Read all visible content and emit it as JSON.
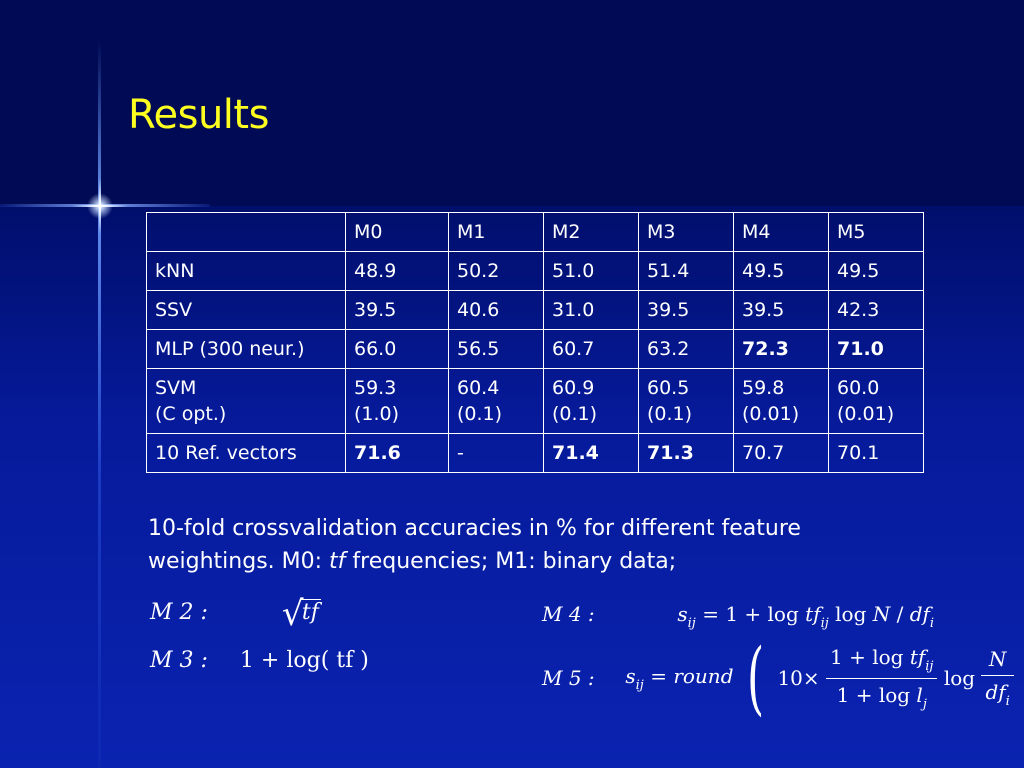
{
  "slide": {
    "title": "Results"
  },
  "table": {
    "headers": [
      "",
      "M0",
      "M1",
      "M2",
      "M3",
      "M4",
      "M5"
    ],
    "rows": [
      {
        "label": "kNN",
        "cells": [
          "48.9",
          "50.2",
          "51.0",
          "51.4",
          "49.5",
          "49.5"
        ]
      },
      {
        "label": "SSV",
        "cells": [
          "39.5",
          "40.6",
          "31.0",
          "39.5",
          "39.5",
          "42.3"
        ]
      },
      {
        "label": "MLP (300 neur.)",
        "cells": [
          "66.0",
          "56.5",
          "60.7",
          "63.2",
          "72.3",
          "71.0"
        ]
      },
      {
        "label": "SVM",
        "label_line2": "(C opt.)",
        "cells": [
          "59.3",
          "60.4",
          "60.9",
          "60.5",
          "59.8",
          "60.0"
        ],
        "cells_line2": [
          "(1.0)",
          "(0.1)",
          "(0.1)",
          "(0.1)",
          "(0.01)",
          "(0.01)"
        ]
      },
      {
        "label": "10 Ref. vectors",
        "cells": [
          "71.6",
          "-",
          "71.4",
          "71.3",
          "70.7",
          "70.1"
        ]
      }
    ]
  },
  "caption": {
    "part1": "10-fold crossvalidation accuracies in % for different feature weightings. M0:",
    "tf": "tf",
    "part2": "frequencies; M1: binary data;"
  },
  "formulas": {
    "m2_label": "M 2 :",
    "m2_expr": "tf",
    "m3_label": "M 3 :",
    "m3_expr": "1 + log( tf )",
    "m4_label": "M 4 :",
    "m5_label": "M 5 :"
  },
  "colors": {
    "title": "#ffff1f",
    "text": "#ffffff",
    "background": "#000e6a"
  }
}
